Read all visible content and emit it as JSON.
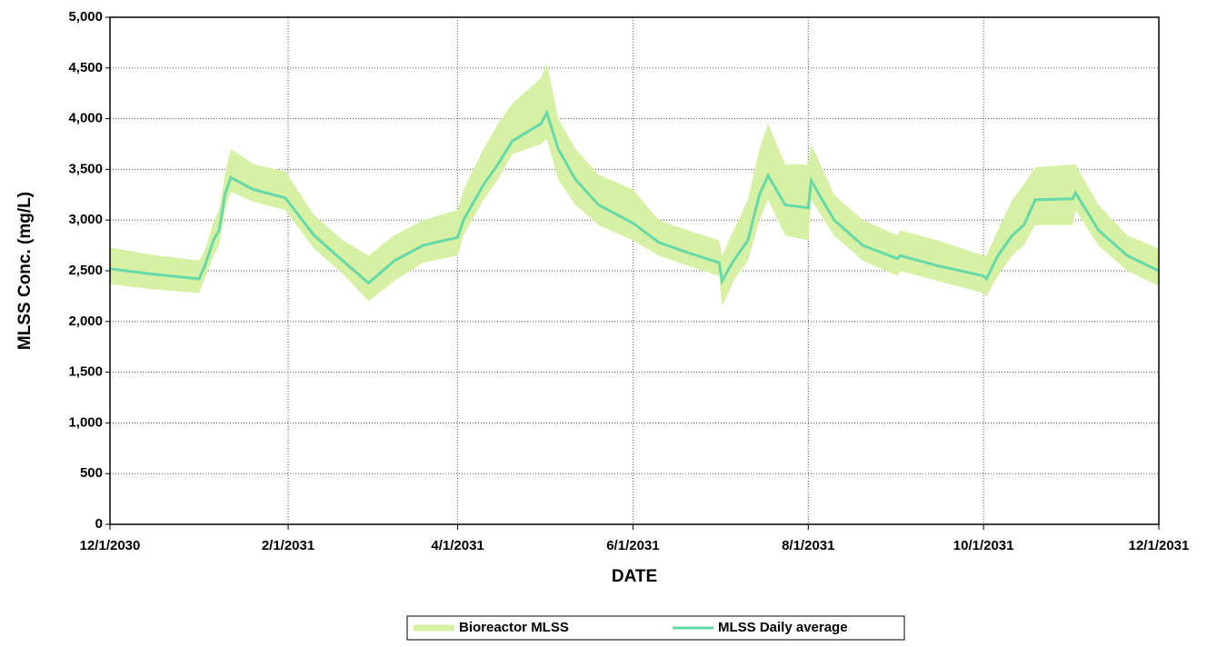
{
  "chart_data": {
    "type": "band-line",
    "x_label": "DATE",
    "y_label": "MLSS Conc. (mg/L)",
    "x": [
      "12/1/2030",
      "12/15/2030",
      "1/1/2031",
      "1/3/2031",
      "1/6/2031",
      "1/8/2031",
      "1/10/2031",
      "1/12/2031",
      "1/20/2031",
      "1/31/2031",
      "2/10/2031",
      "2/20/2031",
      "3/1/2031",
      "3/10/2031",
      "3/20/2031",
      "4/1/2031",
      "4/3/2031",
      "4/10/2031",
      "4/15/2031",
      "4/20/2031",
      "4/30/2031",
      "5/2/2031",
      "5/6/2031",
      "5/12/2031",
      "5/20/2031",
      "6/1/2031",
      "6/10/2031",
      "6/20/2031",
      "7/1/2031",
      "7/2/2031",
      "7/6/2031",
      "7/11/2031",
      "7/15/2031",
      "7/18/2031",
      "7/24/2031",
      "8/1/2031",
      "8/2/2031",
      "8/10/2031",
      "8/20/2031",
      "9/1/2031",
      "9/2/2031",
      "9/15/2031",
      "10/1/2031",
      "10/2/2031",
      "10/6/2031",
      "10/11/2031",
      "10/15/2031",
      "10/19/2031",
      "11/1/2031",
      "11/2/2031",
      "11/10/2031",
      "11/20/2031",
      "12/1/2031"
    ],
    "series": [
      {
        "name": "Bioreactor MLSS",
        "color": "#d6f0a4",
        "low": [
          2370,
          2320,
          2280,
          2420,
          2650,
          2750,
          3100,
          3280,
          3180,
          3100,
          2720,
          2470,
          2200,
          2400,
          2580,
          2650,
          2850,
          3200,
          3400,
          3650,
          3750,
          3800,
          3400,
          3150,
          2950,
          2800,
          2650,
          2550,
          2450,
          2150,
          2400,
          2600,
          3000,
          3200,
          2850,
          2800,
          3200,
          2850,
          2600,
          2450,
          2500,
          2400,
          2280,
          2250,
          2450,
          2650,
          2750,
          2950,
          2950,
          3100,
          2750,
          2500,
          2350
        ],
        "high": [
          2730,
          2660,
          2600,
          2700,
          2980,
          3100,
          3450,
          3700,
          3550,
          3480,
          3050,
          2800,
          2650,
          2850,
          3000,
          3100,
          3300,
          3700,
          3950,
          4150,
          4400,
          4550,
          4000,
          3700,
          3450,
          3300,
          3000,
          2900,
          2800,
          2650,
          2900,
          3200,
          3700,
          3950,
          3550,
          3550,
          3750,
          3250,
          3000,
          2850,
          2900,
          2800,
          2650,
          2650,
          2900,
          3200,
          3350,
          3520,
          3550,
          3550,
          3150,
          2850,
          2720
        ]
      },
      {
        "name": "MLSS Daily average",
        "color": "#66d9a8",
        "values": [
          2520,
          2470,
          2420,
          2550,
          2800,
          2900,
          3250,
          3420,
          3300,
          3220,
          2850,
          2600,
          2380,
          2600,
          2750,
          2830,
          3000,
          3350,
          3550,
          3780,
          3950,
          4060,
          3700,
          3400,
          3150,
          2970,
          2780,
          2680,
          2580,
          2400,
          2600,
          2800,
          3250,
          3440,
          3150,
          3120,
          3390,
          3000,
          2750,
          2620,
          2650,
          2550,
          2450,
          2420,
          2650,
          2850,
          2950,
          3200,
          3210,
          3270,
          2900,
          2650,
          2500
        ]
      }
    ],
    "xlim": [
      "12/1/2030",
      "12/1/2031"
    ],
    "xticks": [
      "12/1/2030",
      "2/1/2031",
      "4/1/2031",
      "6/1/2031",
      "8/1/2031",
      "10/1/2031",
      "12/1/2031"
    ],
    "ylim": [
      0,
      5000
    ],
    "yticks": [
      0,
      500,
      {
        "value": 1000,
        "label": "1,000"
      },
      {
        "value": 1500,
        "label": "1,500"
      },
      {
        "value": 2000,
        "label": "2,000"
      },
      {
        "value": 2500,
        "label": "2,500"
      },
      {
        "value": 3000,
        "label": "3,000"
      },
      {
        "value": 3500,
        "label": "3,500"
      },
      {
        "value": 4000,
        "label": "4,000"
      },
      {
        "value": 4500,
        "label": "4,500"
      },
      {
        "value": 5000,
        "label": "5,000"
      }
    ],
    "grid": true,
    "legend": "bottom"
  }
}
